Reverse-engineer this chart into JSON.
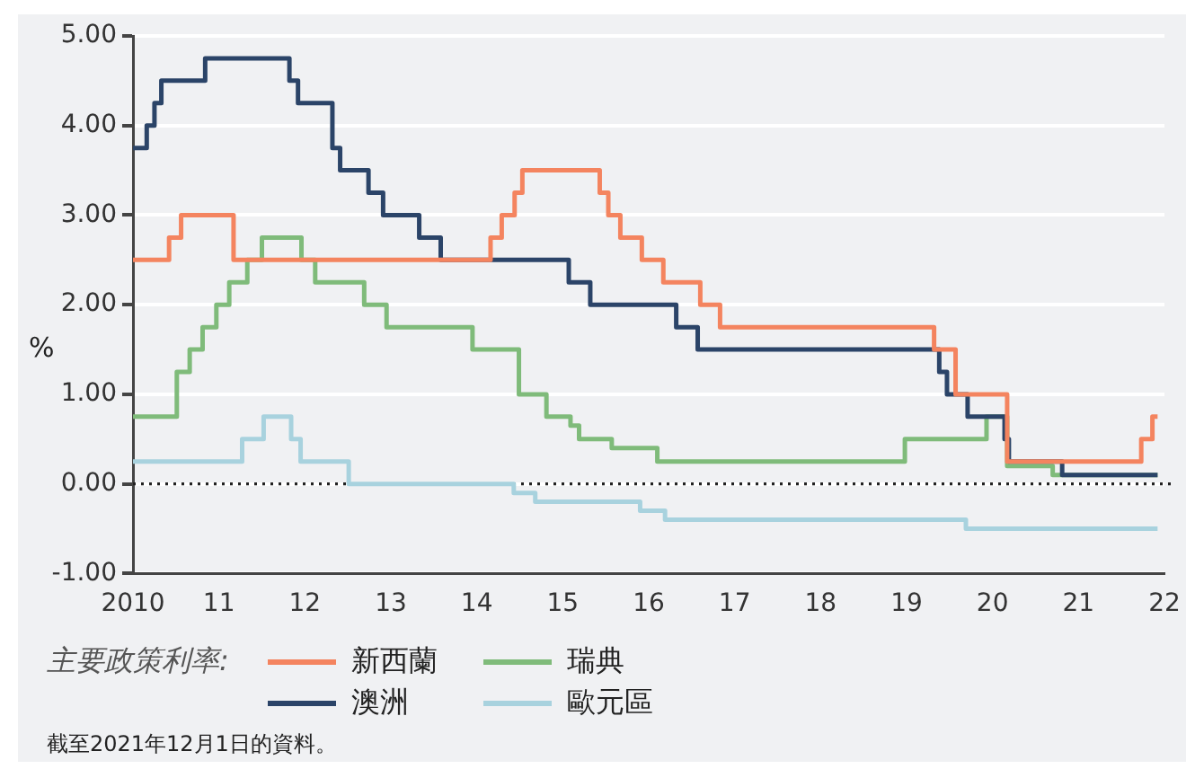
{
  "chart_data": {
    "type": "step",
    "ylabel": "%",
    "legend_title": "主要政策利率:",
    "legend": "bottom",
    "grid": "y",
    "xlim": [
      2010,
      2022
    ],
    "xticks": [
      {
        "value": 2010,
        "label": "2010"
      },
      {
        "value": 2011,
        "label": "11"
      },
      {
        "value": 2012,
        "label": "12"
      },
      {
        "value": 2013,
        "label": "13"
      },
      {
        "value": 2014,
        "label": "14"
      },
      {
        "value": 2015,
        "label": "15"
      },
      {
        "value": 2016,
        "label": "16"
      },
      {
        "value": 2017,
        "label": "17"
      },
      {
        "value": 2018,
        "label": "18"
      },
      {
        "value": 2019,
        "label": "19"
      },
      {
        "value": 2020,
        "label": "20"
      },
      {
        "value": 2021,
        "label": "21"
      },
      {
        "value": 2022,
        "label": "22"
      }
    ],
    "ylim": [
      -1,
      5
    ],
    "yticks": [
      {
        "value": -1,
        "label": "-1.00"
      },
      {
        "value": 0,
        "label": "0.00"
      },
      {
        "value": 1,
        "label": "1.00"
      },
      {
        "value": 2,
        "label": "2.00"
      },
      {
        "value": 3,
        "label": "3.00"
      },
      {
        "value": 4,
        "label": "4.00"
      },
      {
        "value": 5,
        "label": "5.00"
      }
    ],
    "ref_lines": [
      {
        "axis": "y",
        "value": 0,
        "color": "#222222",
        "line_style": "dotted"
      }
    ],
    "series": [
      {
        "name": "新西蘭",
        "color": "#f4845f",
        "x": [
          2010,
          2010.42,
          2010.56,
          2011.17,
          2014.16,
          2014.29,
          2014.44,
          2014.53,
          2015.43,
          2015.53,
          2015.67,
          2015.92,
          2016.17,
          2016.6,
          2016.83,
          2019.32,
          2019.57,
          2020.17,
          2021.73,
          2021.86,
          2021.92
        ],
        "values": [
          2.5,
          2.75,
          3.0,
          2.5,
          2.75,
          3.0,
          3.25,
          3.5,
          3.25,
          3.0,
          2.75,
          2.5,
          2.25,
          2.0,
          1.75,
          1.5,
          1.0,
          0.25,
          0.5,
          0.75,
          0.75
        ]
      },
      {
        "name": "澳洲",
        "color": "#2b4468",
        "x": [
          2010,
          2010.16,
          2010.25,
          2010.33,
          2010.84,
          2011.82,
          2011.92,
          2012.32,
          2012.41,
          2012.74,
          2012.91,
          2013.33,
          2013.58,
          2015.07,
          2015.32,
          2016.32,
          2016.57,
          2019.38,
          2019.47,
          2019.71,
          2020.14,
          2020.19,
          2020.81,
          2021.92
        ],
        "values": [
          3.75,
          4.0,
          4.25,
          4.5,
          4.75,
          4.5,
          4.25,
          3.75,
          3.5,
          3.25,
          3.0,
          2.75,
          2.5,
          2.25,
          2.0,
          1.75,
          1.5,
          1.25,
          1.0,
          0.75,
          0.5,
          0.25,
          0.1,
          0.1
        ]
      },
      {
        "name": "瑞典",
        "color": "#7fbb7a",
        "x": [
          2010,
          2010.51,
          2010.66,
          2010.81,
          2010.97,
          2011.12,
          2011.33,
          2011.5,
          2011.96,
          2012.12,
          2012.69,
          2012.95,
          2013.95,
          2014.49,
          2014.81,
          2015.09,
          2015.19,
          2015.57,
          2016.1,
          2018.98,
          2019.93,
          2020.17,
          2020.7,
          2021.92
        ],
        "values": [
          0.75,
          1.25,
          1.5,
          1.75,
          2.0,
          2.25,
          2.5,
          2.75,
          2.5,
          2.25,
          2.0,
          1.75,
          1.5,
          1.0,
          0.75,
          0.65,
          0.5,
          0.4,
          0.25,
          0.5,
          0.75,
          0.2,
          0.1,
          0.1
        ]
      },
      {
        "name": "歐元區",
        "color": "#a8d2de",
        "x": [
          2010,
          2011.27,
          2011.52,
          2011.84,
          2011.95,
          2012.51,
          2014.43,
          2014.68,
          2015.9,
          2016.19,
          2019.69,
          2021.92
        ],
        "values": [
          0.25,
          0.5,
          0.75,
          0.5,
          0.25,
          0.0,
          -0.1,
          -0.2,
          -0.3,
          -0.4,
          -0.5,
          -0.5
        ]
      }
    ],
    "annotations": [
      "截至2021年12月1日的資料。"
    ]
  }
}
